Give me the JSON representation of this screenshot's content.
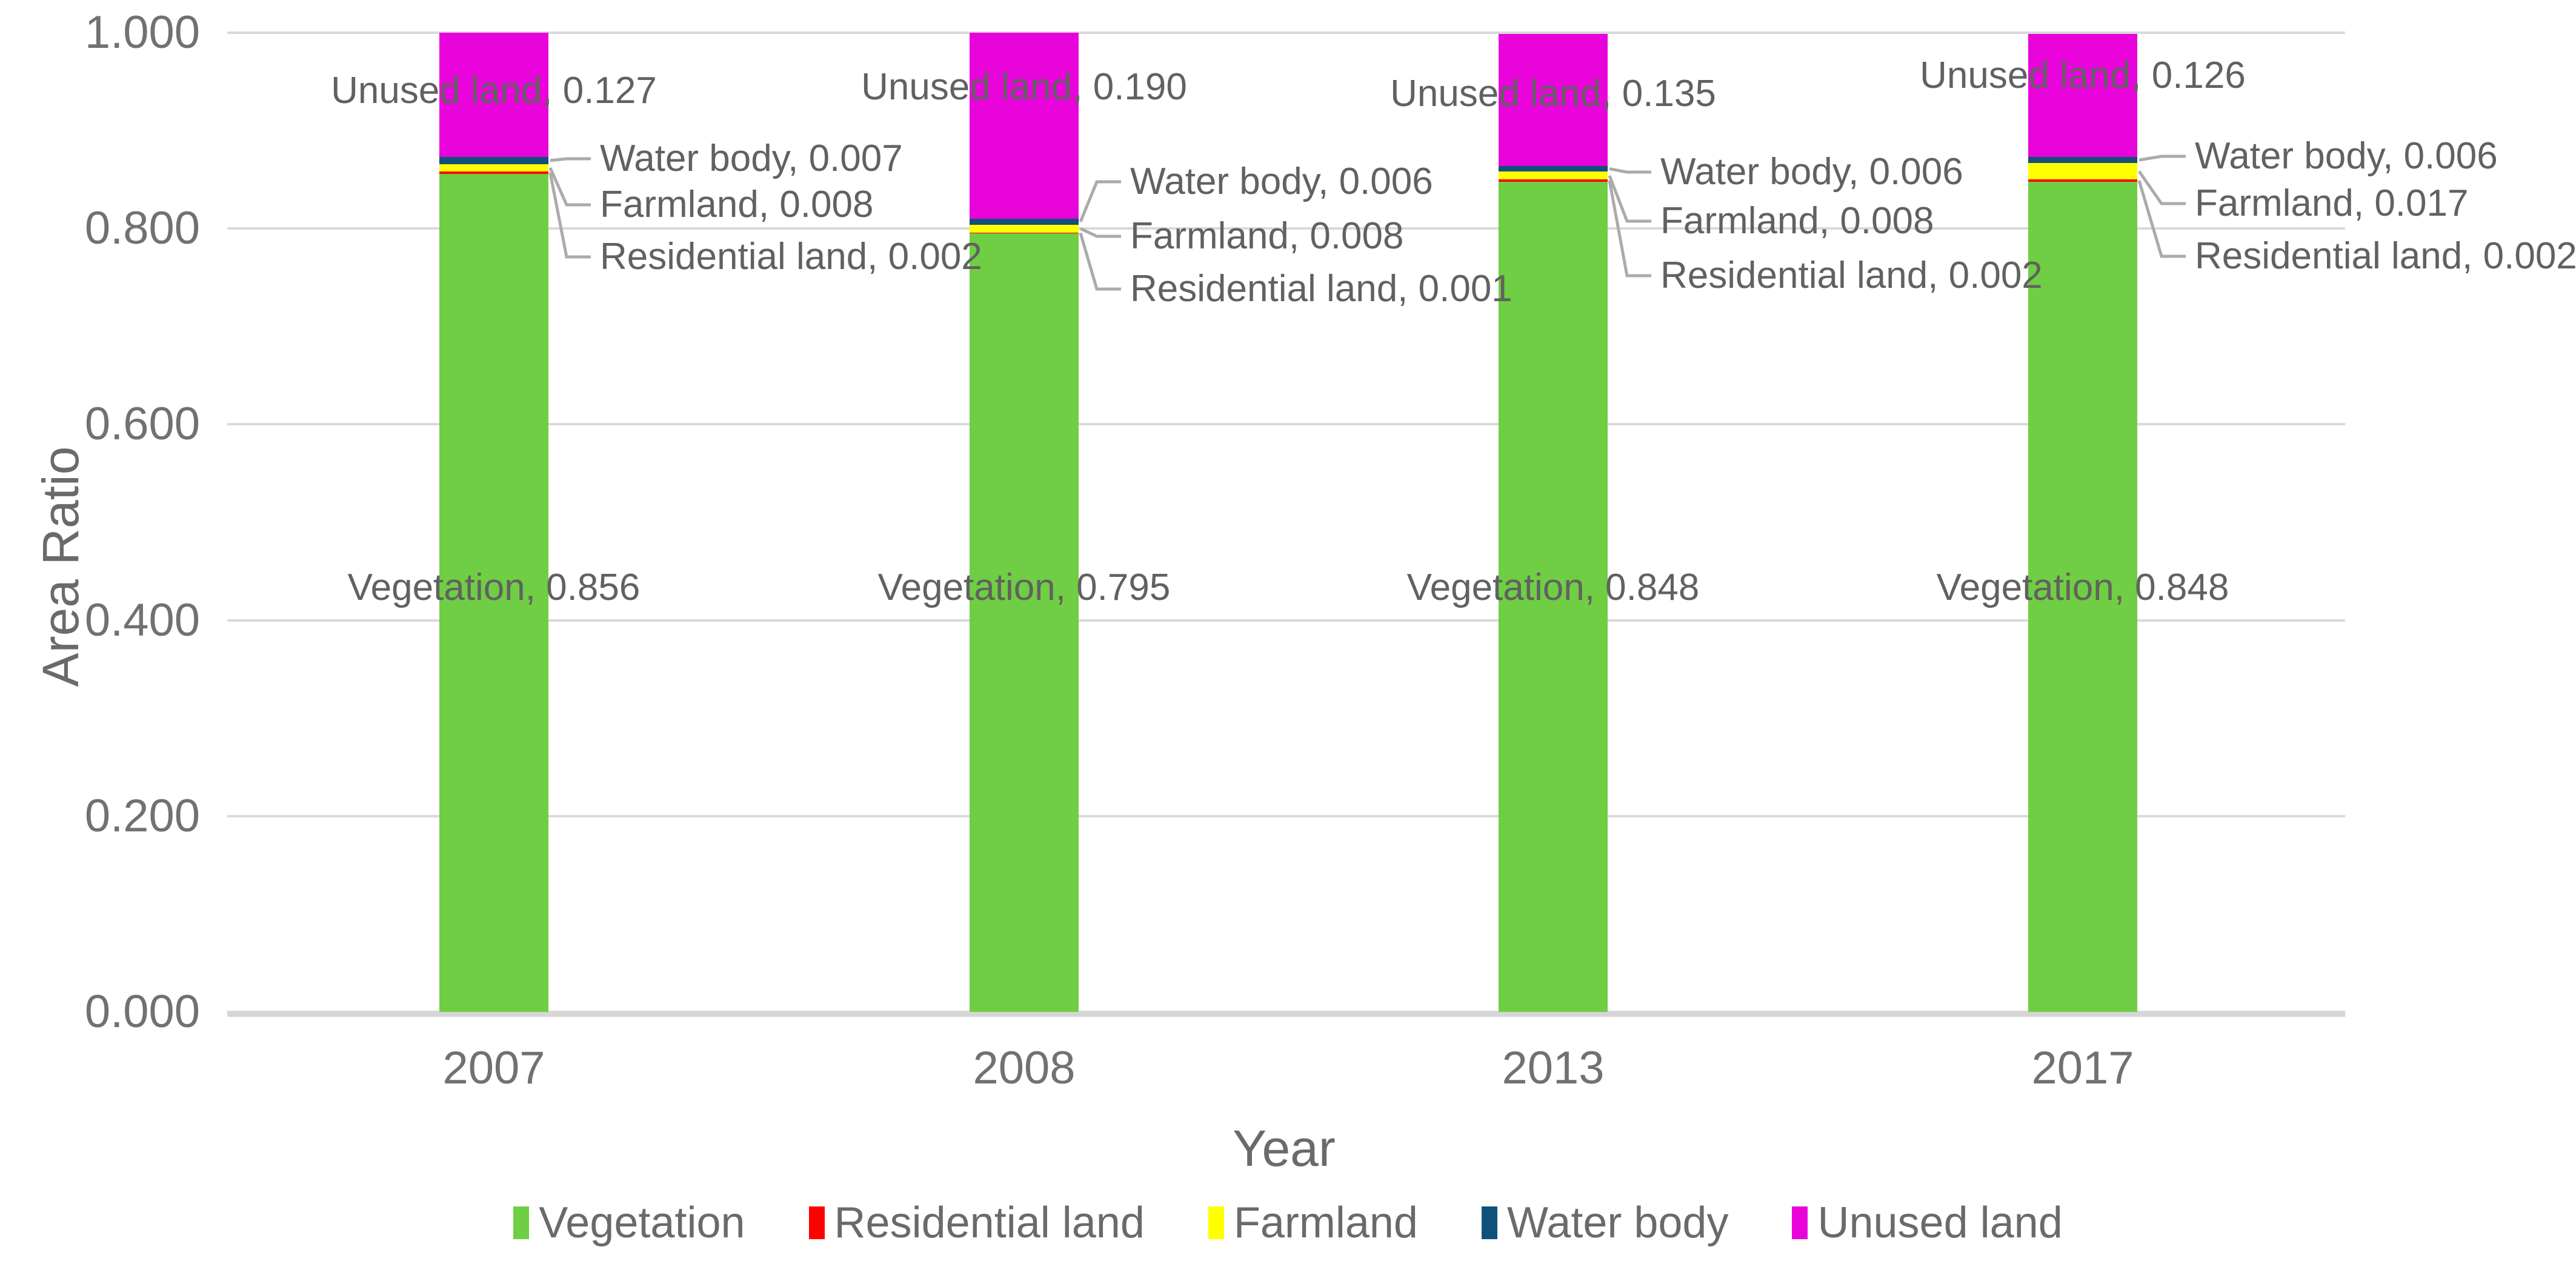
{
  "chart_data": {
    "type": "bar",
    "stacked": true,
    "title": "",
    "xlabel": "Year",
    "ylabel": "Area Ratio",
    "ylim": [
      0,
      1
    ],
    "ytick_step": 0.2,
    "ytick_decimals": 3,
    "grid": true,
    "legend_position": "bottom",
    "categories": [
      "2007",
      "2008",
      "2013",
      "2017"
    ],
    "series": [
      {
        "name": "Vegetation",
        "color": "#6FCE43",
        "values": [
          0.856,
          0.795,
          0.848,
          0.848
        ]
      },
      {
        "name": "Residential land",
        "color": "#FF0000",
        "values": [
          0.002,
          0.001,
          0.002,
          0.002
        ]
      },
      {
        "name": "Farmland",
        "color": "#FFFF00",
        "values": [
          0.008,
          0.008,
          0.008,
          0.017
        ]
      },
      {
        "name": "Water body",
        "color": "#11507B",
        "values": [
          0.007,
          0.006,
          0.006,
          0.006
        ]
      },
      {
        "name": "Unused land",
        "color": "#E903DB",
        "values": [
          0.127,
          0.19,
          0.135,
          0.126
        ]
      }
    ],
    "data_label_format": "{name}, {value}"
  },
  "colors": {
    "gridline": "#D9D9D9",
    "axis_line": "#D6D6D6",
    "tick_text": "#717171",
    "data_label_text": "#616161",
    "leader_line": "#ABABAB",
    "background": "#FFFFFF"
  }
}
